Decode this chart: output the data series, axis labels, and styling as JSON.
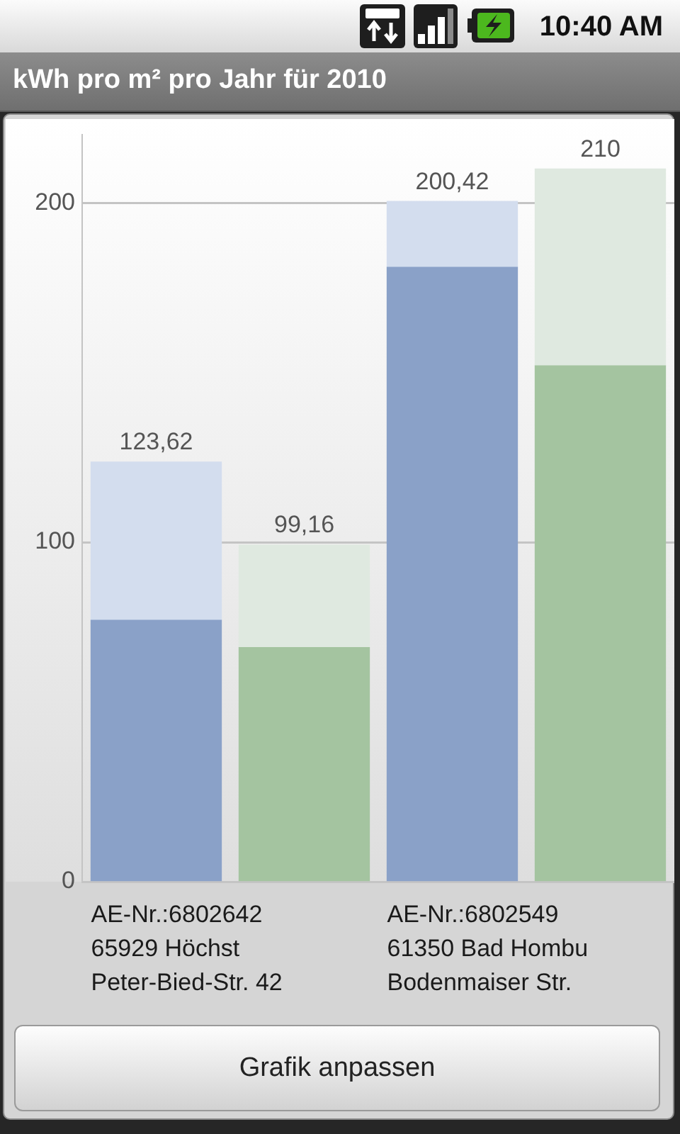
{
  "chart_data": {
    "type": "bar",
    "title": "kWh pro m² pro Jahr für 2010",
    "categories": [
      "AE-Nr.:6802642\n65929 Höchst\nPeter-Bied-Str. 42",
      null,
      "AE-Nr.:6802549\n61350 Bad Hombu\nBodenmaiser Str.",
      null
    ],
    "series": [
      {
        "colors": [
          "#8aa1c8",
          "#a4c4a0",
          "#8aa1c8",
          "#a4c4a0"
        ],
        "values": [
          77,
          69,
          181,
          152
        ]
      },
      {
        "colors": [
          "#d3ddee",
          "#dfe9e0",
          "#d3ddee",
          "#dfe9e0"
        ],
        "values": [
          46.62,
          30.16,
          19.42,
          58
        ]
      }
    ],
    "stacked": true,
    "totals": [
      "123,62",
      "99,16",
      "200,42",
      "210"
    ],
    "ylim": [
      0,
      220
    ],
    "yticks": [
      0,
      100,
      200
    ],
    "grid": "y",
    "annotations": [
      "10:40 AM",
      "Grafik anpassen"
    ]
  }
}
